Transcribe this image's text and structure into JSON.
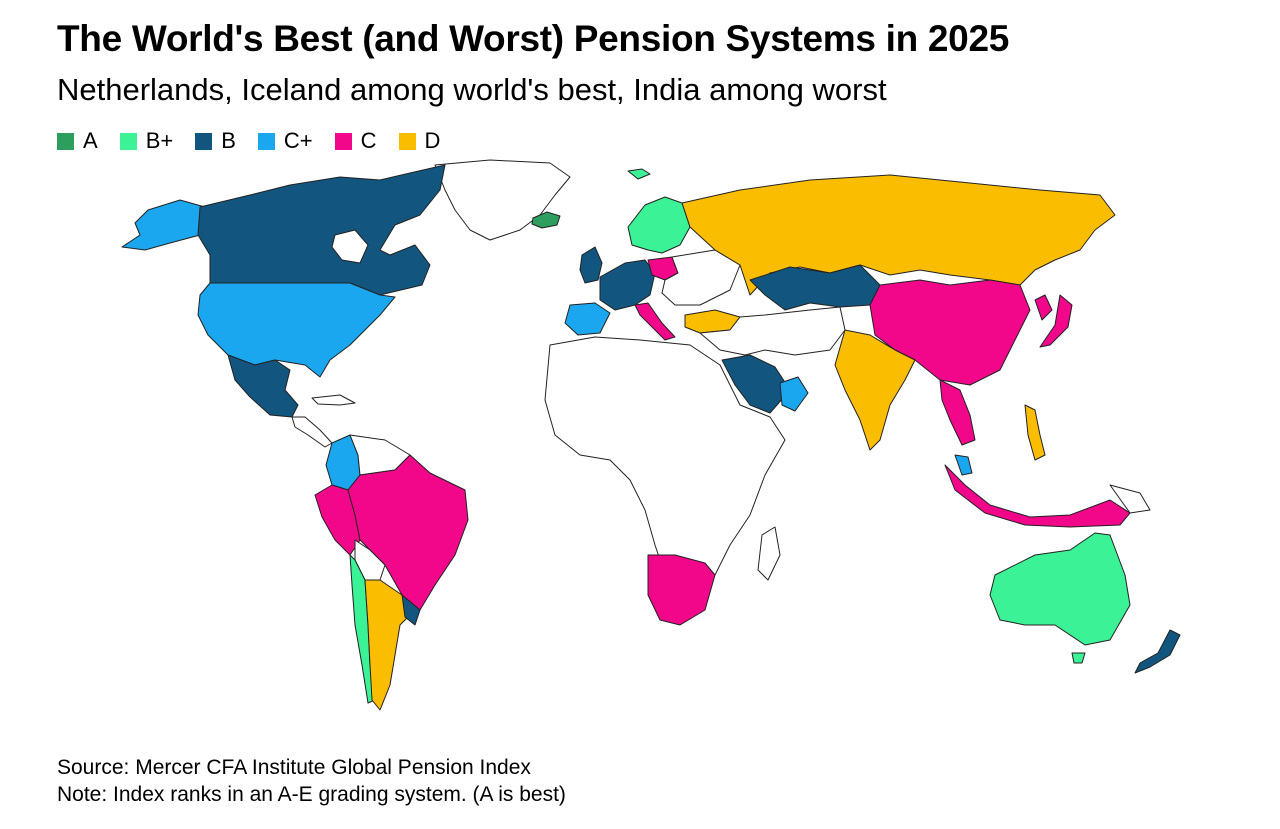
{
  "title": "The World's Best (and Worst) Pension Systems in 2025",
  "subtitle": "Netherlands, Iceland among world's best, India among worst",
  "legend": [
    {
      "grade": "A",
      "color": "#2e9e5e"
    },
    {
      "grade": "B+",
      "color": "#3cf296"
    },
    {
      "grade": "B",
      "color": "#12557e"
    },
    {
      "grade": "C+",
      "color": "#1aa7f0"
    },
    {
      "grade": "C",
      "color": "#f2078a"
    },
    {
      "grade": "D",
      "color": "#fbbd00"
    }
  ],
  "no_data_color": "#ffffff",
  "footer": {
    "source": "Source: Mercer CFA Institute Global Pension Index",
    "note": "Note: Index ranks in an A-E grading system. (A is best)"
  }
}
